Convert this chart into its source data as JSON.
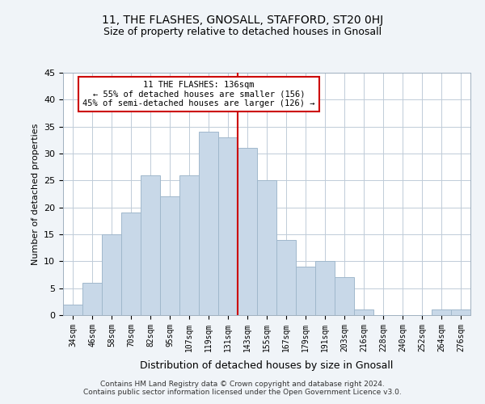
{
  "title": "11, THE FLASHES, GNOSALL, STAFFORD, ST20 0HJ",
  "subtitle": "Size of property relative to detached houses in Gnosall",
  "xlabel": "Distribution of detached houses by size in Gnosall",
  "ylabel": "Number of detached properties",
  "bins": [
    "34sqm",
    "46sqm",
    "58sqm",
    "70sqm",
    "82sqm",
    "95sqm",
    "107sqm",
    "119sqm",
    "131sqm",
    "143sqm",
    "155sqm",
    "167sqm",
    "179sqm",
    "191sqm",
    "203sqm",
    "216sqm",
    "228sqm",
    "240sqm",
    "252sqm",
    "264sqm",
    "276sqm"
  ],
  "values": [
    2,
    6,
    15,
    19,
    26,
    22,
    26,
    34,
    33,
    31,
    25,
    14,
    9,
    10,
    7,
    1,
    0,
    0,
    0,
    1,
    1
  ],
  "bar_color": "#c8d8e8",
  "bar_edge_color": "#a0b8cc",
  "vline_x": 8.5,
  "vline_color": "#cc0000",
  "annotation_line1": "11 THE FLASHES: 136sqm",
  "annotation_line2": "← 55% of detached houses are smaller (156)",
  "annotation_line3": "45% of semi-detached houses are larger (126) →",
  "annotation_box_color": "#ffffff",
  "annotation_box_edge": "#cc0000",
  "ylim": [
    0,
    45
  ],
  "yticks": [
    0,
    5,
    10,
    15,
    20,
    25,
    30,
    35,
    40,
    45
  ],
  "footer": "Contains HM Land Registry data © Crown copyright and database right 2024.\nContains public sector information licensed under the Open Government Licence v3.0.",
  "bg_color": "#f0f4f8",
  "plot_bg_color": "#ffffff",
  "grid_color": "#c0ccd8"
}
